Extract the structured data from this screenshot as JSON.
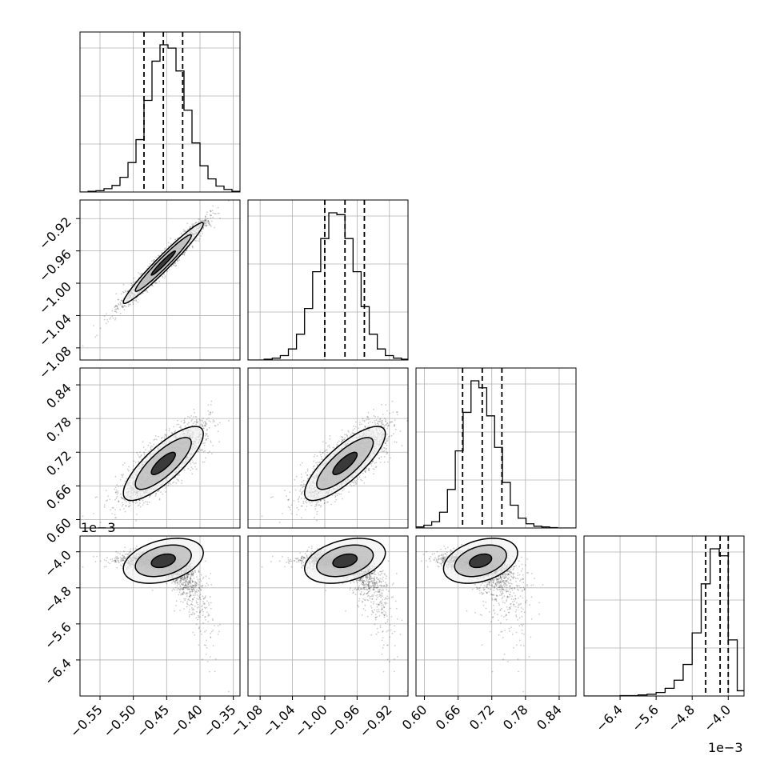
{
  "chart_data": {
    "type": "corner",
    "grid": true,
    "params": [
      {
        "range": [
          -0.58,
          -0.34
        ],
        "ticks": [
          -0.55,
          -0.5,
          -0.45,
          -0.4,
          -0.35
        ],
        "tick_labels": [
          "−0.55",
          "−0.50",
          "−0.45",
          "−0.40",
          "−0.35"
        ],
        "mean": -0.455,
        "sd": 0.03
      },
      {
        "range": [
          -1.095,
          -0.897
        ],
        "ticks": [
          -1.08,
          -1.04,
          -1.0,
          -0.96,
          -0.92
        ],
        "tick_labels": [
          "−1.08",
          "−1.04",
          "−1.00",
          "−0.96",
          "−0.92"
        ],
        "mean": -0.975,
        "sd": 0.025
      },
      {
        "range": [
          0.585,
          0.87
        ],
        "ticks": [
          0.6,
          0.66,
          0.72,
          0.78,
          0.84
        ],
        "tick_labels": [
          "0.60",
          "0.66",
          "0.72",
          "0.78",
          "0.84"
        ],
        "mean": 0.7,
        "sd": 0.033
      },
      {
        "range": [
          -7.2,
          -3.65
        ],
        "ticks": [
          -6.4,
          -5.6,
          -4.8,
          -4.0
        ],
        "tick_labels": [
          "−6.4",
          "−5.6",
          "−4.8",
          "−4.0"
        ],
        "offset_label": "1e−3",
        "mean": -4.2,
        "sd": 0.25
      }
    ],
    "quantile_lines": [
      [
        -0.484,
        -0.455,
        -0.426
      ],
      [
        -1.0,
        -0.975,
        -0.951
      ],
      [
        0.668,
        0.703,
        0.738
      ],
      [
        -4.5,
        -4.18,
        -4.0
      ]
    ],
    "histograms": [
      {
        "edges": [
          -0.58,
          -0.568,
          -0.556,
          -0.544,
          -0.532,
          -0.52,
          -0.508,
          -0.496,
          -0.484,
          -0.472,
          -0.46,
          -0.448,
          -0.436,
          -0.424,
          -0.412,
          -0.4,
          -0.388,
          -0.376,
          -0.364,
          -0.352,
          -0.34
        ],
        "counts": [
          0,
          2,
          4,
          10,
          20,
          45,
          90,
          160,
          280,
          400,
          450,
          440,
          370,
          250,
          150,
          80,
          40,
          18,
          8,
          2
        ]
      },
      {
        "edges": [
          -1.095,
          -1.085,
          -1.075,
          -1.065,
          -1.055,
          -1.045,
          -1.035,
          -1.025,
          -1.015,
          -1.005,
          -0.995,
          -0.985,
          -0.975,
          -0.965,
          -0.955,
          -0.945,
          -0.935,
          -0.925,
          -0.915,
          -0.905,
          -0.897
        ],
        "counts": [
          0,
          0,
          2,
          5,
          12,
          30,
          70,
          140,
          240,
          330,
          400,
          395,
          330,
          240,
          145,
          70,
          30,
          12,
          5,
          2
        ]
      },
      {
        "edges": [
          0.585,
          0.599,
          0.613,
          0.627,
          0.641,
          0.655,
          0.669,
          0.683,
          0.697,
          0.711,
          0.725,
          0.739,
          0.753,
          0.767,
          0.781,
          0.795,
          0.809,
          0.823,
          0.837,
          0.851,
          0.87
        ],
        "counts": [
          3,
          8,
          18,
          45,
          110,
          220,
          330,
          420,
          400,
          320,
          230,
          130,
          65,
          28,
          12,
          5,
          3,
          1,
          0,
          0
        ]
      },
      {
        "edges": [
          -7.2,
          -7.0,
          -6.8,
          -6.6,
          -6.4,
          -6.2,
          -6.0,
          -5.8,
          -5.6,
          -5.4,
          -5.2,
          -5.0,
          -4.8,
          -4.6,
          -4.4,
          -4.2,
          -4.0,
          -3.8,
          -3.65
        ],
        "counts": [
          0,
          0,
          0,
          0,
          1,
          1,
          3,
          5,
          10,
          22,
          45,
          90,
          180,
          320,
          420,
          400,
          160,
          15
        ]
      }
    ]
  }
}
